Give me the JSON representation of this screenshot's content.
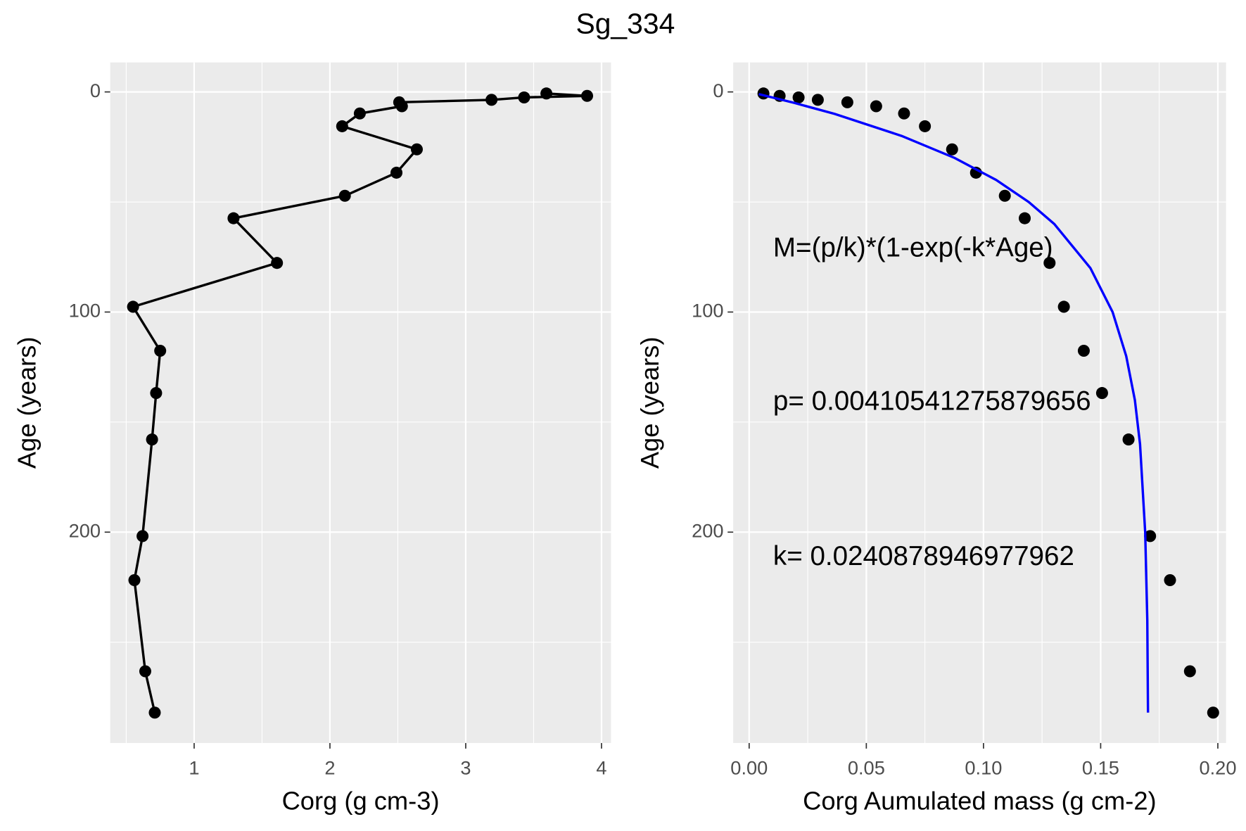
{
  "title": "Sg_334",
  "chart_data": [
    {
      "type": "line",
      "x_label": "Corg (g cm-3)",
      "y_label": "Age (years)",
      "xlim": [
        0.382,
        4.07
      ],
      "ylim": [
        -13.4,
        295.8
      ],
      "y_reversed": true,
      "xticks": [
        1,
        2,
        3,
        4
      ],
      "yticks": [
        0,
        100,
        200
      ],
      "x_minor_ticks": [
        0.5,
        1.5,
        2.5,
        3.5
      ],
      "y_minor_ticks": [
        50,
        150,
        250
      ],
      "grid": true,
      "series": [
        {
          "type": "line",
          "markers": true,
          "color": "#000000",
          "x": [
            3.594,
            3.894,
            3.43,
            3.19,
            2.51,
            2.53,
            2.22,
            2.09,
            2.64,
            2.49,
            2.11,
            1.29,
            1.61,
            0.55,
            0.75,
            0.72,
            0.69,
            0.62,
            0.56,
            0.64,
            0.71
          ],
          "values": [
            0.7,
            1.8,
            2.5,
            3.6,
            4.7,
            6.5,
            9.8,
            15.6,
            26.1,
            36.7,
            47.2,
            57.4,
            77.7,
            97.6,
            117.6,
            136.8,
            157.9,
            201.8,
            221.8,
            263.2,
            282.0
          ]
        }
      ]
    },
    {
      "type": "scatter",
      "x_label": "Corg Aumulated mass (g cm-2)",
      "y_label": "Age (years)",
      "xlim": [
        -0.0068,
        0.2035
      ],
      "ylim": [
        -13.4,
        295.8
      ],
      "y_reversed": true,
      "xticks": [
        {
          "value": 0,
          "label": "0.00"
        },
        {
          "value": 0.05,
          "label": "0.05"
        },
        {
          "value": 0.1,
          "label": "0.10"
        },
        {
          "value": 0.15,
          "label": "0.15"
        },
        {
          "value": 0.2,
          "label": "0.20"
        }
      ],
      "yticks": [
        0,
        100,
        200
      ],
      "x_minor_ticks": [
        0.025,
        0.075,
        0.125,
        0.175
      ],
      "y_minor_ticks": [
        50,
        150,
        250
      ],
      "grid": true,
      "annotations": [
        "M=(p/k)*(1-exp(-k*Age)",
        "p= 0.00410541275879656",
        "k= 0.0240878946977962"
      ],
      "series": [
        {
          "type": "scatter",
          "color": "#000000",
          "x": [
            0.0061,
            0.013,
            0.0211,
            0.0293,
            0.0419,
            0.0542,
            0.0661,
            0.075,
            0.0866,
            0.0968,
            0.1091,
            0.1176,
            0.1282,
            0.1343,
            0.1428,
            0.1506,
            0.1619,
            0.1711,
            0.1796,
            0.1881,
            0.198
          ],
          "values": [
            0.7,
            1.8,
            2.5,
            3.6,
            4.7,
            6.5,
            9.8,
            15.6,
            26.1,
            36.7,
            47.2,
            57.4,
            77.7,
            97.6,
            117.6,
            136.8,
            157.9,
            201.8,
            221.8,
            263.2,
            282.0
          ]
        },
        {
          "type": "line",
          "color": "#0000ff",
          "x": [
            0.0041,
            0.0193,
            0.0365,
            0.0651,
            0.0877,
            0.1054,
            0.1193,
            0.1302,
            0.1456,
            0.1551,
            0.1609,
            0.1646,
            0.1668,
            0.169,
            0.1699,
            0.1702
          ],
          "values": [
            1,
            5,
            10,
            20,
            30,
            40,
            50,
            60,
            80,
            100,
            120,
            140,
            160,
            200,
            240,
            282
          ]
        }
      ]
    }
  ]
}
